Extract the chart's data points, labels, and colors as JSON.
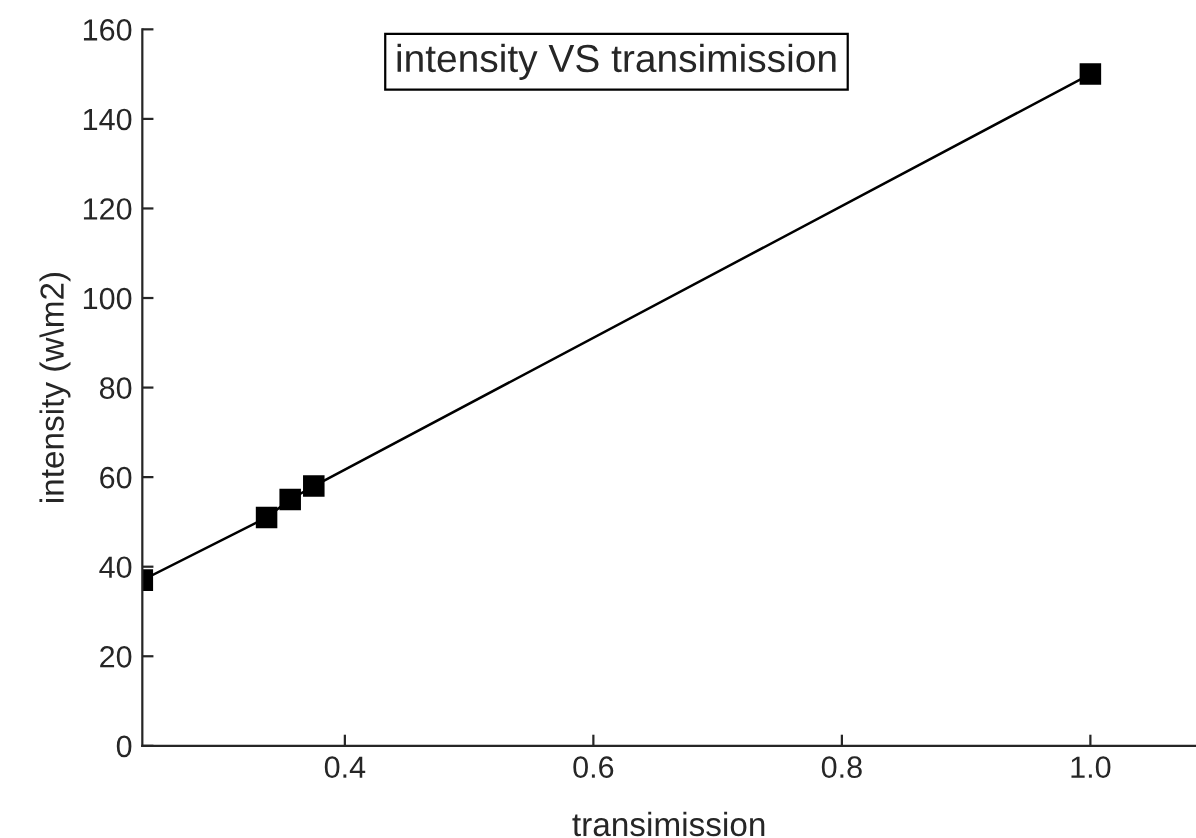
{
  "chart_data": {
    "type": "line",
    "title": "intensity VS transimission",
    "xlabel": "transimission",
    "ylabel": "intensity (w\\m2)",
    "x": [
      0.237,
      0.337,
      0.356,
      0.375,
      1.0
    ],
    "series": [
      {
        "color": "#000000",
        "values": [
          37,
          51,
          55,
          58,
          150
        ]
      }
    ],
    "marker": "square",
    "line_style": "solid",
    "xlim": [
      0.237,
      1.085
    ],
    "xticks": [
      0.4,
      0.6,
      0.8,
      {
        "value": 1.0,
        "label": "1.0"
      }
    ],
    "ylim": [
      0,
      160
    ],
    "yticks": [
      0,
      20,
      40,
      60,
      80,
      100,
      120,
      140,
      160
    ],
    "grid": false,
    "legend": false
  }
}
